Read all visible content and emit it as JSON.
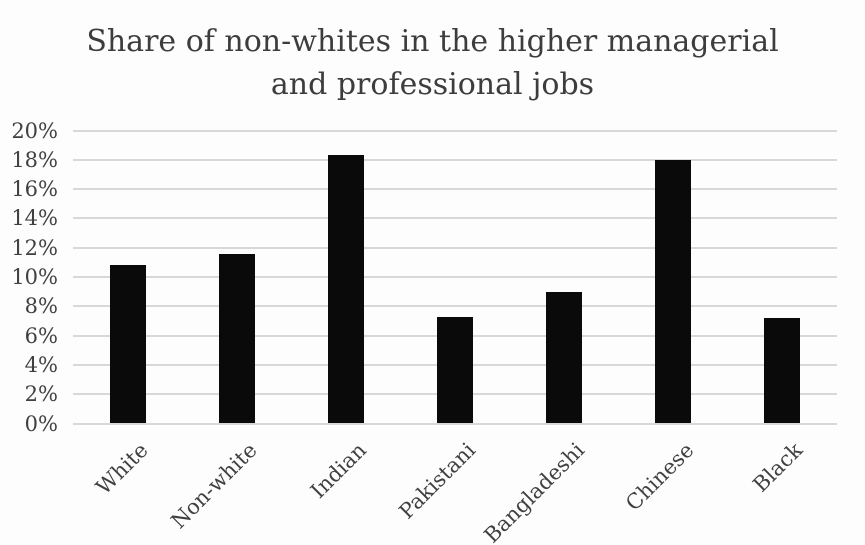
{
  "chart_data": {
    "type": "bar",
    "title": "Share of non-whites in the higher managerial and professional jobs",
    "title_lines": [
      "Share of non-whites in the higher managerial",
      "and professional jobs"
    ],
    "categories": [
      "White",
      "Non-white",
      "Indian",
      "Pakistani",
      "Bangladeshi",
      "Chinese",
      "Black"
    ],
    "values": [
      10.8,
      11.6,
      18.3,
      7.3,
      9.0,
      18.0,
      7.2
    ],
    "xlabel": "",
    "ylabel": "",
    "ylim": [
      0,
      20
    ],
    "ytick_step": 2,
    "ytick_labels": [
      "0%",
      "2%",
      "4%",
      "6%",
      "8%",
      "10%",
      "12%",
      "14%",
      "16%",
      "18%",
      "20%"
    ],
    "grid": true,
    "legend_position": "none",
    "x_label_rotation_deg": 45,
    "colors": {
      "bar": "#0a0a0a",
      "gridline": "#d8d8d8",
      "title_text": "#3d3d3d",
      "axis_text": "#404040",
      "background": "#fdfdfd"
    }
  }
}
